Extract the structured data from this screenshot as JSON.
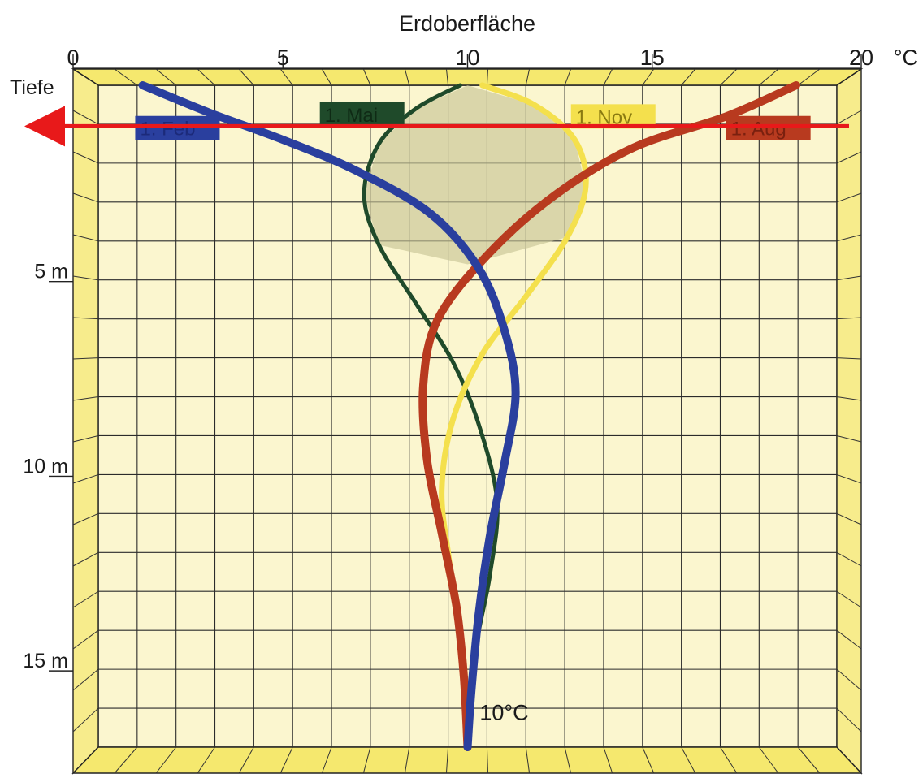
{
  "chart_data": {
    "type": "line",
    "title": "Erdoberfläche",
    "xlabel": "°C",
    "ylabel": "Tiefe",
    "xlim": [
      0,
      20
    ],
    "ylim": [
      0,
      17
    ],
    "x_ticks": [
      {
        "value": 0,
        "label": "0"
      },
      {
        "value": 5,
        "label": "5"
      },
      {
        "value": 10,
        "label": "10"
      },
      {
        "value": 15,
        "label": "15"
      },
      {
        "value": 20,
        "label": "20"
      }
    ],
    "y_ticks": [
      {
        "value": 5,
        "label": "5 m"
      },
      {
        "value": 10,
        "label": "10 m"
      },
      {
        "value": 15,
        "label": "15 m"
      }
    ],
    "grid": true,
    "series": [
      {
        "name": "1. Feb",
        "color": "#2a3f9e",
        "points": [
          [
            1.2,
            0
          ],
          [
            3.0,
            0.7
          ],
          [
            5.0,
            1.4
          ],
          [
            7.0,
            2.2
          ],
          [
            9.0,
            3.3
          ],
          [
            10.3,
            4.7
          ],
          [
            11.0,
            6.3
          ],
          [
            11.3,
            7.9
          ],
          [
            11.0,
            9.7
          ],
          [
            10.6,
            11.6
          ],
          [
            10.3,
            13.6
          ],
          [
            10.1,
            15.6
          ],
          [
            10.0,
            17.0
          ]
        ]
      },
      {
        "name": "1. Mai",
        "color": "#1f4a2a",
        "points": [
          [
            9.8,
            0
          ],
          [
            8.6,
            0.6
          ],
          [
            7.6,
            1.5
          ],
          [
            7.2,
            2.8
          ],
          [
            7.6,
            4.1
          ],
          [
            8.6,
            5.6
          ],
          [
            9.6,
            7.1
          ],
          [
            10.3,
            8.7
          ],
          [
            10.8,
            10.7
          ],
          [
            10.6,
            12.6
          ],
          [
            10.2,
            14.6
          ],
          [
            10.0,
            17.0
          ]
        ]
      },
      {
        "name": "1. Nov",
        "color": "#f4e04d",
        "points": [
          [
            10.4,
            0
          ],
          [
            11.8,
            0.5
          ],
          [
            12.9,
            1.4
          ],
          [
            13.2,
            2.6
          ],
          [
            12.7,
            3.9
          ],
          [
            11.6,
            5.4
          ],
          [
            10.4,
            6.9
          ],
          [
            9.6,
            8.6
          ],
          [
            9.3,
            10.4
          ],
          [
            9.5,
            12.2
          ],
          [
            9.8,
            14.2
          ],
          [
            10.0,
            17.0
          ]
        ]
      },
      {
        "name": "1. Aug",
        "color": "#b83a1f",
        "points": [
          [
            18.9,
            0
          ],
          [
            17.0,
            0.8
          ],
          [
            14.5,
            1.6
          ],
          [
            12.4,
            2.8
          ],
          [
            10.6,
            4.3
          ],
          [
            9.2,
            6.0
          ],
          [
            8.8,
            7.7
          ],
          [
            8.9,
            9.6
          ],
          [
            9.3,
            11.5
          ],
          [
            9.7,
            13.4
          ],
          [
            9.9,
            15.2
          ],
          [
            10.0,
            17.0
          ]
        ]
      }
    ],
    "legend": [
      {
        "label": "1. Feb",
        "color": "#2a3f9e",
        "text_color": "#1c2a7a",
        "anchor": [
          1.0,
          1.1
        ]
      },
      {
        "label": "1. Mai",
        "color": "#1f4a2a",
        "text_color": "#0f2a15",
        "anchor": [
          6.0,
          0.75
        ]
      },
      {
        "label": "1. Nov",
        "color": "#f4e04d",
        "text_color": "#8a7a10",
        "anchor": [
          12.8,
          0.8
        ]
      },
      {
        "label": "1. Aug",
        "color": "#b83a1f",
        "text_color": "#7a200f",
        "anchor": [
          17.0,
          1.1
        ]
      }
    ],
    "annotations": [
      {
        "text": "10°C",
        "x": 10.15,
        "y": 16.3
      }
    ],
    "marker_line": {
      "y": 1.05,
      "color": "#e8191a",
      "arrow": "left"
    },
    "shaded_region_color": "#c8c596"
  }
}
